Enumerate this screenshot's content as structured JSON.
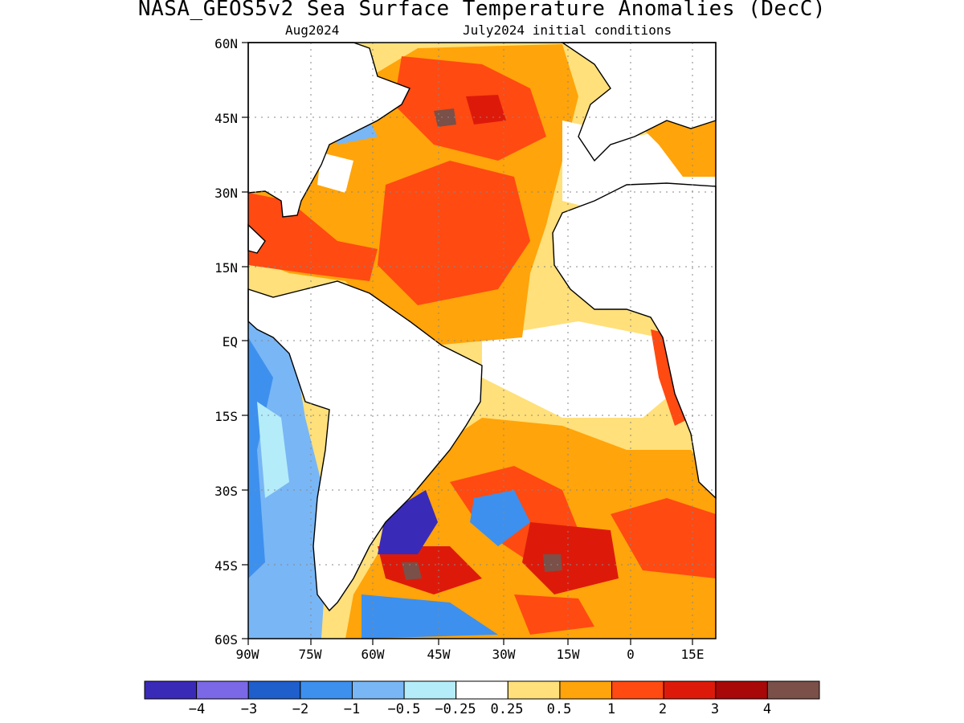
{
  "header": {
    "title": "NASA_GEOS5v2 Sea Surface Temperature Anomalies (DecC)",
    "subtitle_left": "Aug2024",
    "subtitle_right": "July2024 initial conditions"
  },
  "axes": {
    "lat_labels": [
      "60N",
      "45N",
      "30N",
      "15N",
      "EQ",
      "15S",
      "30S",
      "45S",
      "60S"
    ],
    "lon_labels": [
      "90W",
      "75W",
      "60W",
      "45W",
      "30W",
      "15W",
      "0",
      "15E"
    ]
  },
  "colorbar": {
    "labels": [
      "−4",
      "−3",
      "−2",
      "−1",
      "−0.5",
      "−0.25",
      "0.25",
      "0.5",
      "1",
      "2",
      "3",
      "4"
    ],
    "colors": [
      "#3a2ab8",
      "#7a68e6",
      "#1f5fcc",
      "#3d90ee",
      "#79b6f5",
      "#b4ecfa",
      "#ffffff",
      "#ffe07a",
      "#ffa40a",
      "#ff4a12",
      "#dd1a0a",
      "#a80808",
      "#7a5048"
    ]
  },
  "colors": {
    "land": "#ffffff",
    "coast": "#000000",
    "grid": "#888888"
  }
}
